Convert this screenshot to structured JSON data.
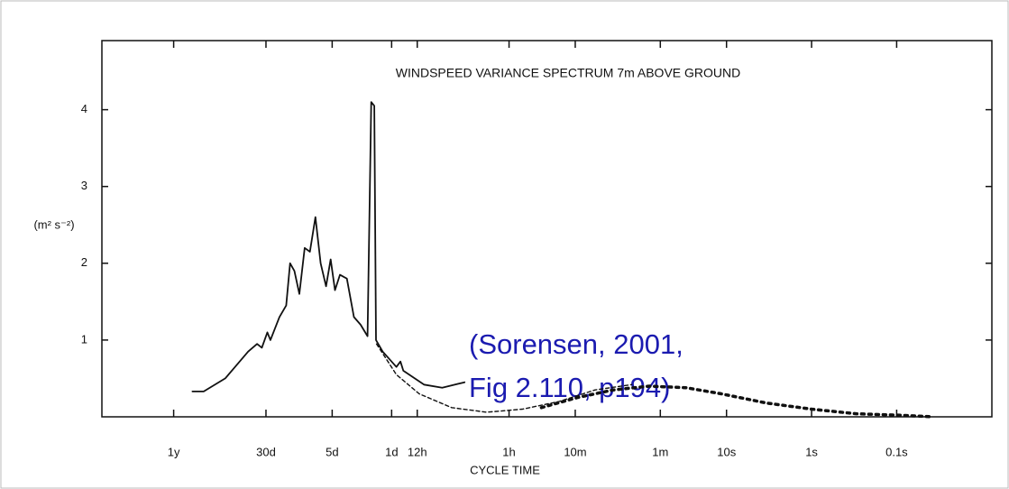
{
  "chart_data": {
    "type": "line",
    "title": "WINDSPEED VARIANCE SPECTRUM 7m ABOVE GROUND",
    "xlabel": "CYCLE TIME",
    "ylabel": "(m² s⁻²)",
    "annotation": [
      "(Sorensen, 2001,",
      "Fig 2.110, p194)"
    ],
    "xlog": true,
    "xlim": [
      220000000,
      0.0076
    ],
    "xticks": [
      {
        "value": 31536000,
        "label": "1y"
      },
      {
        "value": 2592000,
        "label": "30d"
      },
      {
        "value": 432000,
        "label": "5d"
      },
      {
        "value": 86400,
        "label": "1d"
      },
      {
        "value": 43200,
        "label": "12h"
      },
      {
        "value": 3600,
        "label": "1h"
      },
      {
        "value": 600,
        "label": "10m"
      },
      {
        "value": 60,
        "label": "1m"
      },
      {
        "value": 10,
        "label": "10s"
      },
      {
        "value": 1,
        "label": "1s"
      },
      {
        "value": 0.1,
        "label": "0.1s"
      }
    ],
    "ylim": [
      0,
      4.9
    ],
    "yticks": [
      1,
      2,
      3,
      4
    ],
    "series": [
      {
        "color": "#111111",
        "style": "solid",
        "x": [
          19000000,
          14000000,
          7800000,
          4200000,
          3300000,
          2900000,
          2500000,
          2300000,
          1800000,
          1500000,
          1350000,
          1200000,
          1050000,
          910000,
          790000,
          680000,
          590000,
          510000,
          450000,
          400000,
          350000,
          290000,
          240000,
          200000,
          166000,
          150000,
          138000,
          132000,
          110000,
          76000,
          68000,
          63000,
          36000,
          22000,
          12000
        ],
        "values": [
          0.33,
          0.33,
          0.5,
          0.85,
          0.95,
          0.9,
          1.1,
          1.0,
          1.3,
          1.45,
          2.0,
          1.9,
          1.6,
          2.2,
          2.15,
          2.6,
          2.0,
          1.7,
          2.05,
          1.65,
          1.85,
          1.8,
          1.3,
          1.2,
          1.05,
          4.1,
          4.05,
          1.0,
          0.85,
          0.65,
          0.72,
          0.6,
          0.42,
          0.38,
          0.45
        ]
      },
      {
        "color": "#111111",
        "style": "dashed",
        "x": [
          130000,
          76000,
          41000,
          17000,
          6600,
          2500,
          930,
          350,
          130
        ],
        "values": [
          0.95,
          0.55,
          0.3,
          0.12,
          0.06,
          0.1,
          0.2,
          0.35,
          0.42
        ]
      },
      {
        "color": "#111111",
        "style": "dotted",
        "x": [
          1500,
          570,
          215,
          81,
          30,
          11.5,
          3.4,
          1,
          0.3,
          0.087,
          0.037
        ],
        "values": [
          0.12,
          0.25,
          0.35,
          0.4,
          0.38,
          0.3,
          0.18,
          0.1,
          0.04,
          0.02,
          0
        ]
      }
    ]
  }
}
